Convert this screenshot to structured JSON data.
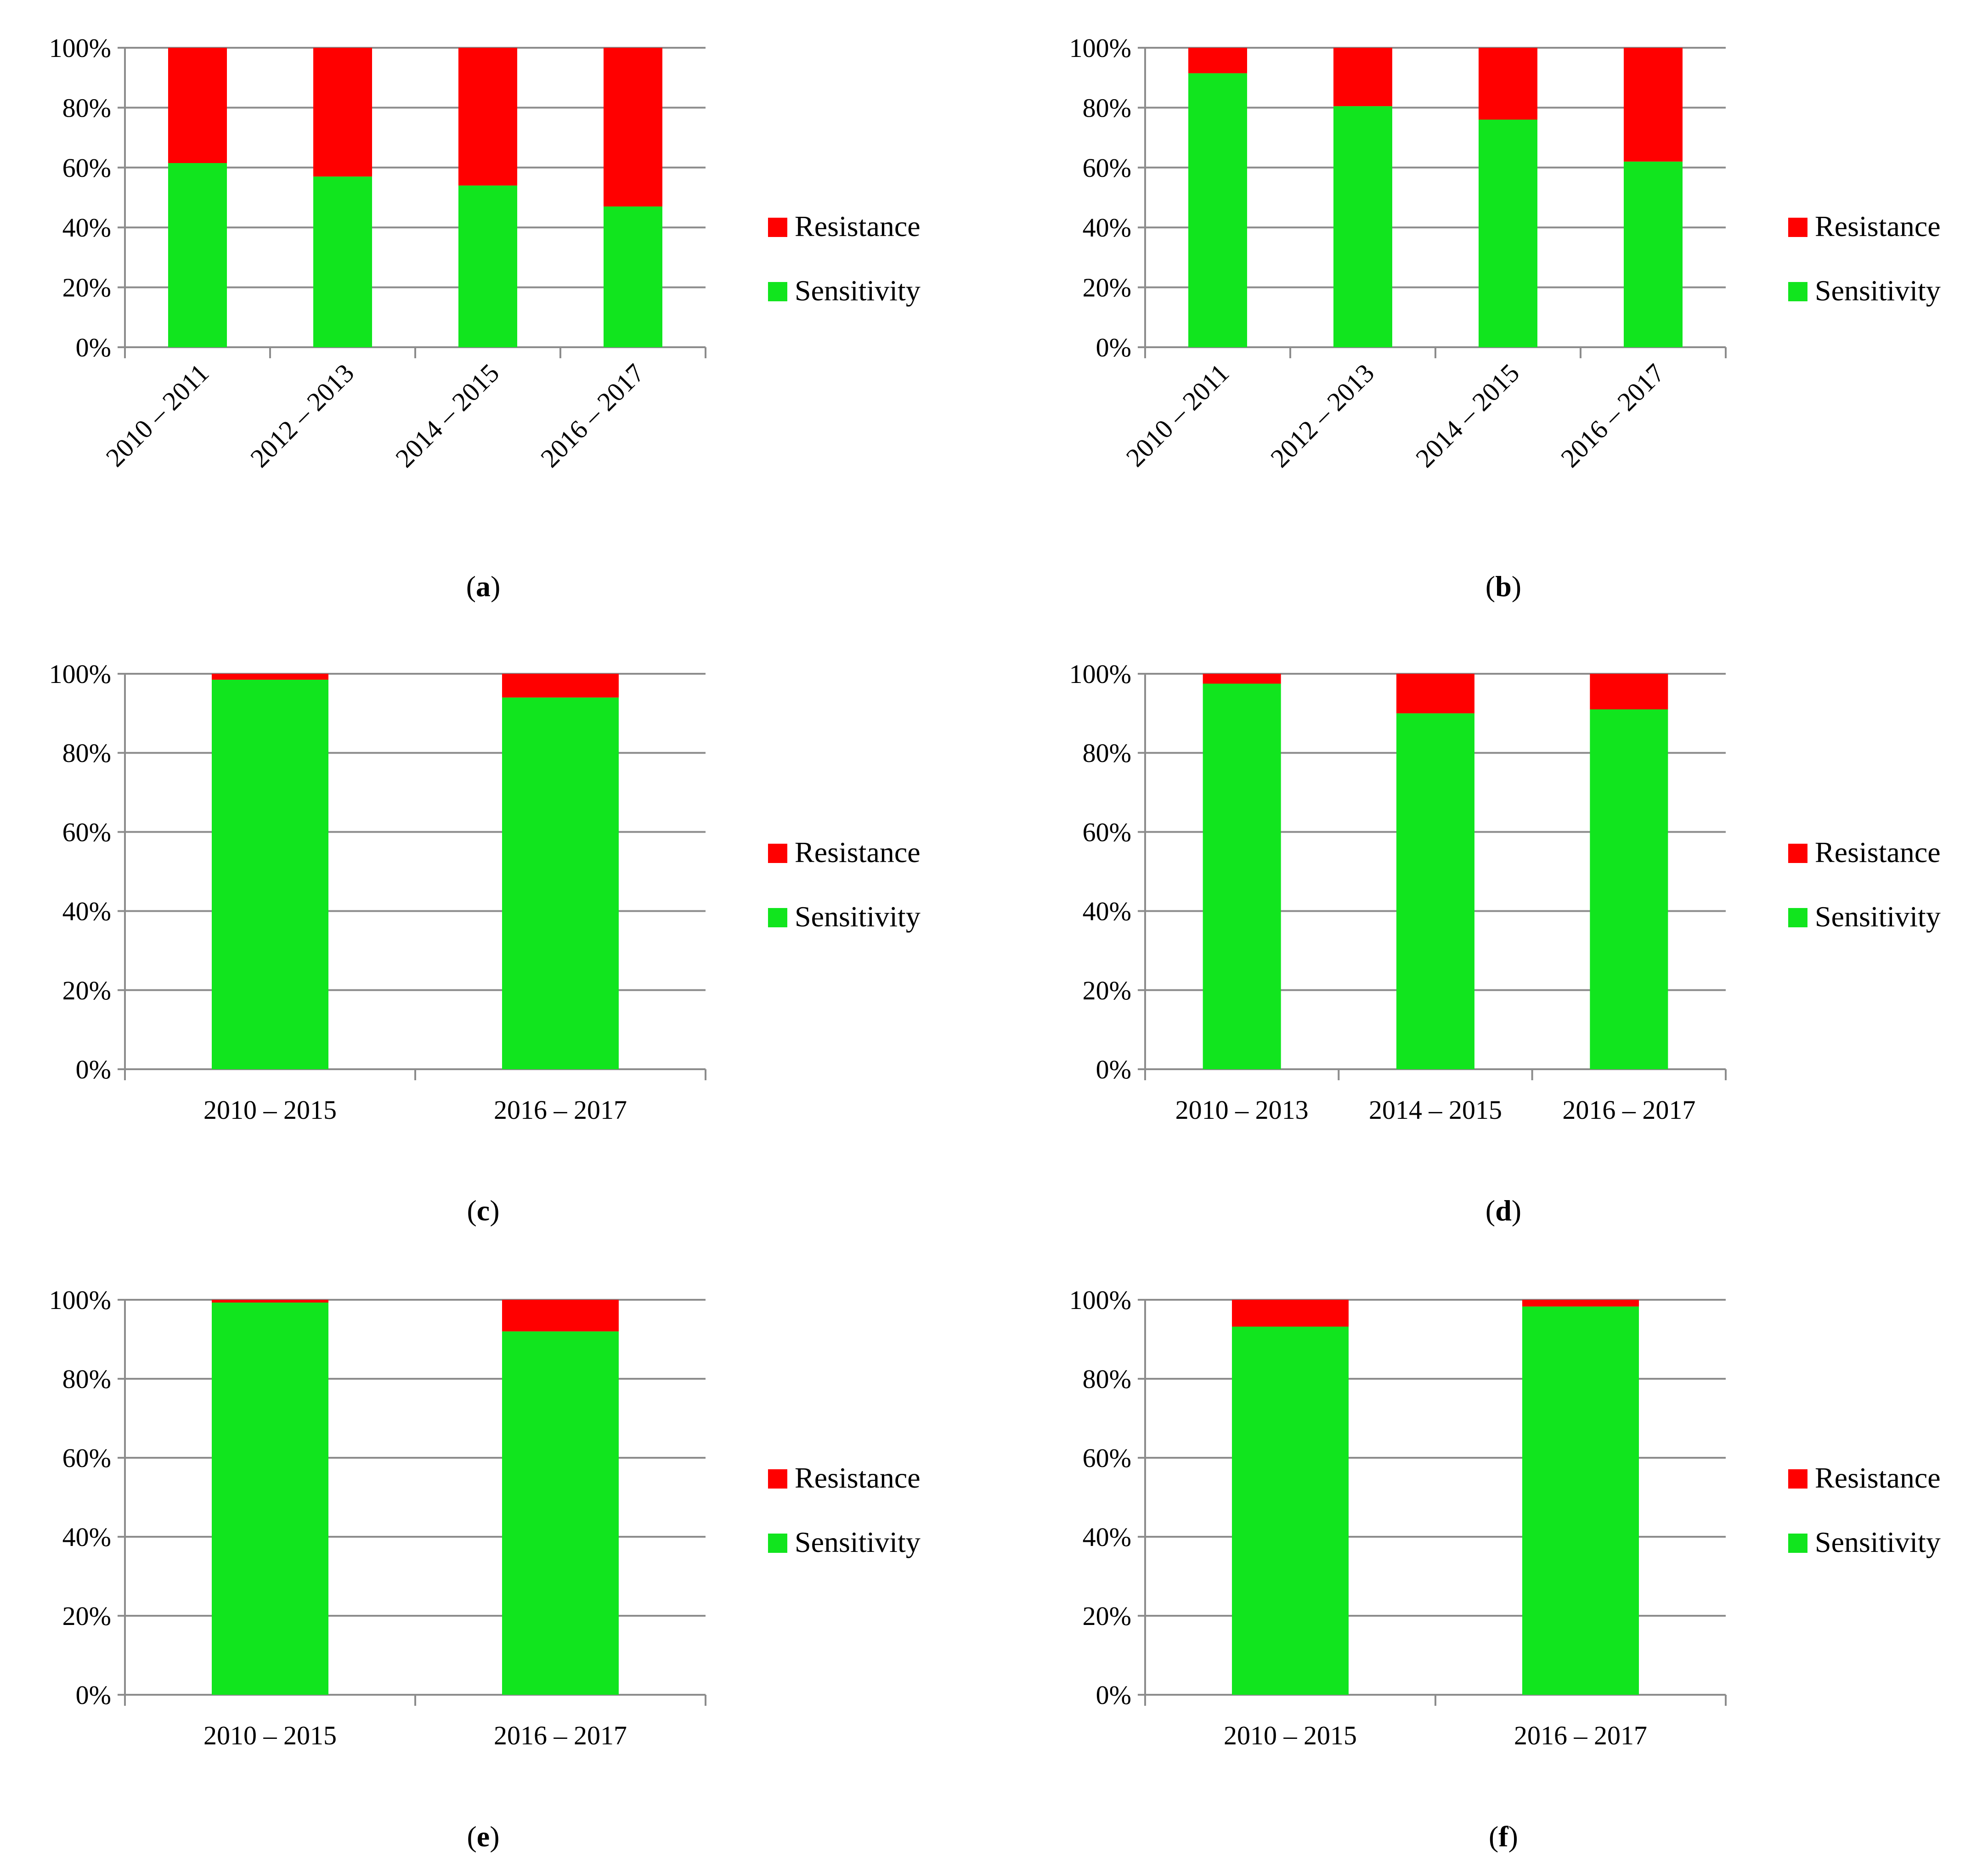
{
  "legend_items": [
    "Resistance",
    "Sensitivity"
  ],
  "colors": {
    "resistance": "#ff0000",
    "sensitivity": "#11e51e",
    "grid": "#8c8c8c",
    "axis": "#8c8c8c"
  },
  "chart_data": [
    {
      "panel": "a",
      "type": "bar",
      "stacked": true,
      "caption": "(a)",
      "categories": [
        "2010 – 2011",
        "2012 – 2013",
        "2014 – 2015",
        "2016 – 2017"
      ],
      "series": [
        {
          "name": "Sensitivity",
          "values": [
            61.5,
            57,
            54,
            47
          ]
        },
        {
          "name": "Resistance",
          "values": [
            38.5,
            43,
            46,
            53
          ]
        }
      ],
      "yticks": [
        "0%",
        "20%",
        "40%",
        "60%",
        "80%",
        "100%"
      ],
      "ylim": [
        0,
        100
      ],
      "legend": [
        "Resistance",
        "Sensitivity"
      ],
      "x_label_rotation": -45
    },
    {
      "panel": "b",
      "type": "bar",
      "stacked": true,
      "caption": "(b)",
      "categories": [
        "2010 – 2011",
        "2012 – 2013",
        "2014 – 2015",
        "2016 – 2017"
      ],
      "series": [
        {
          "name": "Sensitivity",
          "values": [
            91.5,
            80.5,
            76,
            62
          ]
        },
        {
          "name": "Resistance",
          "values": [
            8.5,
            19.5,
            24,
            38
          ]
        }
      ],
      "yticks": [
        "0%",
        "20%",
        "40%",
        "60%",
        "80%",
        "100%"
      ],
      "ylim": [
        0,
        100
      ],
      "legend": [
        "Resistance",
        "Sensitivity"
      ],
      "x_label_rotation": -45
    },
    {
      "panel": "c",
      "type": "bar",
      "stacked": true,
      "caption": "(c)",
      "categories": [
        "2010 – 2015",
        "2016 – 2017"
      ],
      "series": [
        {
          "name": "Sensitivity",
          "values": [
            98.5,
            94
          ]
        },
        {
          "name": "Resistance",
          "values": [
            1.5,
            6
          ]
        }
      ],
      "yticks": [
        "0%",
        "20%",
        "40%",
        "60%",
        "80%",
        "100%"
      ],
      "ylim": [
        0,
        100
      ],
      "legend": [
        "Resistance",
        "Sensitivity"
      ],
      "x_label_rotation": 0
    },
    {
      "panel": "d",
      "type": "bar",
      "stacked": true,
      "caption": "(d)",
      "categories": [
        "2010 – 2013",
        "2014 – 2015",
        "2016 – 2017"
      ],
      "series": [
        {
          "name": "Sensitivity",
          "values": [
            97.5,
            90,
            91
          ]
        },
        {
          "name": "Resistance",
          "values": [
            2.5,
            10,
            9
          ]
        }
      ],
      "yticks": [
        "0%",
        "20%",
        "40%",
        "60%",
        "80%",
        "100%"
      ],
      "ylim": [
        0,
        100
      ],
      "legend": [
        "Resistance",
        "Sensitivity"
      ],
      "x_label_rotation": 0
    },
    {
      "panel": "e",
      "type": "bar",
      "stacked": true,
      "caption": "(e)",
      "categories": [
        "2010 – 2015",
        "2016 – 2017"
      ],
      "series": [
        {
          "name": "Sensitivity",
          "values": [
            99.3,
            92
          ]
        },
        {
          "name": "Resistance",
          "values": [
            0.7,
            8
          ]
        }
      ],
      "yticks": [
        "0%",
        "20%",
        "40%",
        "60%",
        "80%",
        "100%"
      ],
      "ylim": [
        0,
        100
      ],
      "legend": [
        "Resistance",
        "Sensitivity"
      ],
      "x_label_rotation": 0
    },
    {
      "panel": "f",
      "type": "bar",
      "stacked": true,
      "caption": "(f)",
      "categories": [
        "2010 – 2015",
        "2016 – 2017"
      ],
      "series": [
        {
          "name": "Sensitivity",
          "values": [
            93.2,
            98.3
          ]
        },
        {
          "name": "Resistance",
          "values": [
            6.8,
            1.7
          ]
        }
      ],
      "yticks": [
        "0%",
        "20%",
        "40%",
        "60%",
        "80%",
        "100%"
      ],
      "ylim": [
        0,
        100
      ],
      "legend": [
        "Resistance",
        "Sensitivity"
      ],
      "x_label_rotation": 0
    }
  ]
}
